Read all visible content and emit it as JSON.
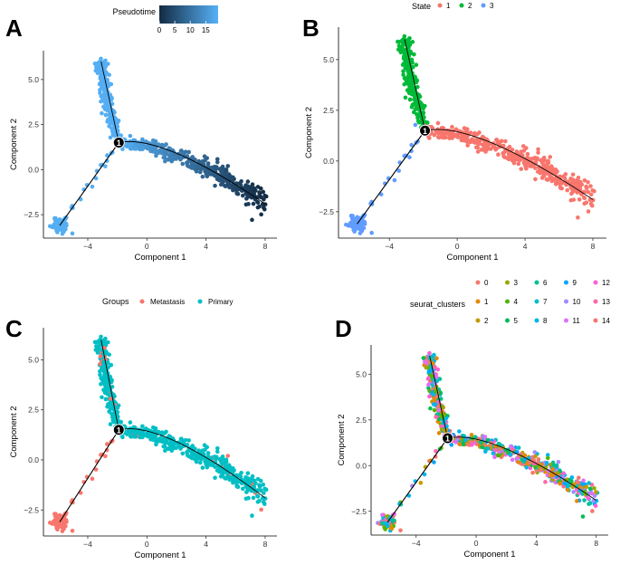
{
  "chart_data": [
    {
      "panel": "A",
      "type": "scatter",
      "xlabel": "Component 1",
      "ylabel": "Component 2",
      "xticks": [
        -4,
        0,
        4,
        8
      ],
      "yticks": [
        -2.5,
        0.0,
        2.5,
        5.0
      ],
      "xlim": [
        -7,
        8.8
      ],
      "ylim": [
        -3.8,
        6.6
      ],
      "branch_point_label": "1",
      "color_by": "Pseudotime",
      "legend": {
        "title": "Pseudotime",
        "type": "colorbar",
        "ticks": [
          0,
          5,
          10,
          15
        ],
        "range": [
          0,
          19
        ],
        "low_color": "#132B43",
        "high_color": "#56B1F7"
      }
    },
    {
      "panel": "B",
      "type": "scatter",
      "xlabel": "Component 1",
      "ylabel": "Component 2",
      "xticks": [
        -4,
        0,
        4,
        8
      ],
      "yticks": [
        -2.5,
        0.0,
        2.5,
        5.0
      ],
      "xlim": [
        -7,
        8.8
      ],
      "ylim": [
        -3.8,
        6.6
      ],
      "branch_point_label": "1",
      "color_by": "State",
      "legend": {
        "title": "State",
        "entries": [
          {
            "label": "1",
            "color": "#F8766D"
          },
          {
            "label": "2",
            "color": "#00BA38"
          },
          {
            "label": "3",
            "color": "#619CFF"
          }
        ]
      }
    },
    {
      "panel": "C",
      "type": "scatter",
      "xlabel": "Component 1",
      "ylabel": "Component 2",
      "xticks": [
        -4,
        0,
        4,
        8
      ],
      "yticks": [
        -2.5,
        0.0,
        2.5,
        5.0
      ],
      "xlim": [
        -7,
        8.8
      ],
      "ylim": [
        -3.8,
        6.6
      ],
      "branch_point_label": "1",
      "color_by": "Groups",
      "legend": {
        "title": "Groups",
        "entries": [
          {
            "label": "Metastasis",
            "color": "#F8766D"
          },
          {
            "label": "Primary",
            "color": "#00BFC4"
          }
        ]
      }
    },
    {
      "panel": "D",
      "type": "scatter",
      "xlabel": "Component 1",
      "ylabel": "Component 2",
      "xticks": [
        -4,
        0,
        4,
        8
      ],
      "yticks": [
        -2.5,
        0.0,
        2.5,
        5.0
      ],
      "xlim": [
        -7,
        8.8
      ],
      "ylim": [
        -3.8,
        6.6
      ],
      "branch_point_label": "1",
      "color_by": "seurat_clusters",
      "legend": {
        "title": "seurat_clusters",
        "entries": [
          {
            "label": "0",
            "color": "#F8766D"
          },
          {
            "label": "1",
            "color": "#E38900"
          },
          {
            "label": "2",
            "color": "#C49A00"
          },
          {
            "label": "3",
            "color": "#99A800"
          },
          {
            "label": "4",
            "color": "#53B400"
          },
          {
            "label": "5",
            "color": "#00BC56"
          },
          {
            "label": "6",
            "color": "#00C094"
          },
          {
            "label": "7",
            "color": "#00BFC4"
          },
          {
            "label": "8",
            "color": "#00B6EB"
          },
          {
            "label": "9",
            "color": "#06A4FF"
          },
          {
            "label": "10",
            "color": "#A58AFF"
          },
          {
            "label": "11",
            "color": "#DF70F8"
          },
          {
            "label": "12",
            "color": "#FB61D7"
          },
          {
            "label": "13",
            "color": "#FF66A8"
          },
          {
            "label": "14",
            "color": "#F8766D"
          }
        ]
      }
    }
  ],
  "trajectory": {
    "branch_point": [
      -1.9,
      1.5
    ],
    "arm_left_start": [
      -5.9,
      -3.1
    ],
    "arm_up_end": [
      -3.1,
      6.0
    ],
    "arm_right_end": [
      8.0,
      -1.9
    ]
  }
}
